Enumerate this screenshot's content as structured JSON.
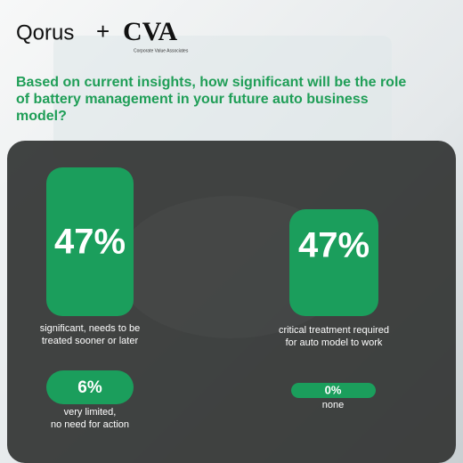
{
  "header": {
    "logo_left": "Qorus",
    "logo_plus": "+",
    "logo_right": "CVA",
    "logo_tagline": "Corporate Value Associates"
  },
  "question": [
    "Based on current insights, how significant will be the role",
    "of battery management in your future auto business",
    "model?"
  ],
  "answers": [
    {
      "value": "47%",
      "label": [
        "significant, needs to be",
        "treated sooner or later"
      ]
    },
    {
      "value": "47%",
      "label": [
        "critical treatment required",
        "for auto model to work"
      ]
    },
    {
      "value": "6%",
      "label": [
        "very limited,",
        "no need for action"
      ]
    },
    {
      "value": "0%",
      "label": [
        "none"
      ]
    }
  ]
}
